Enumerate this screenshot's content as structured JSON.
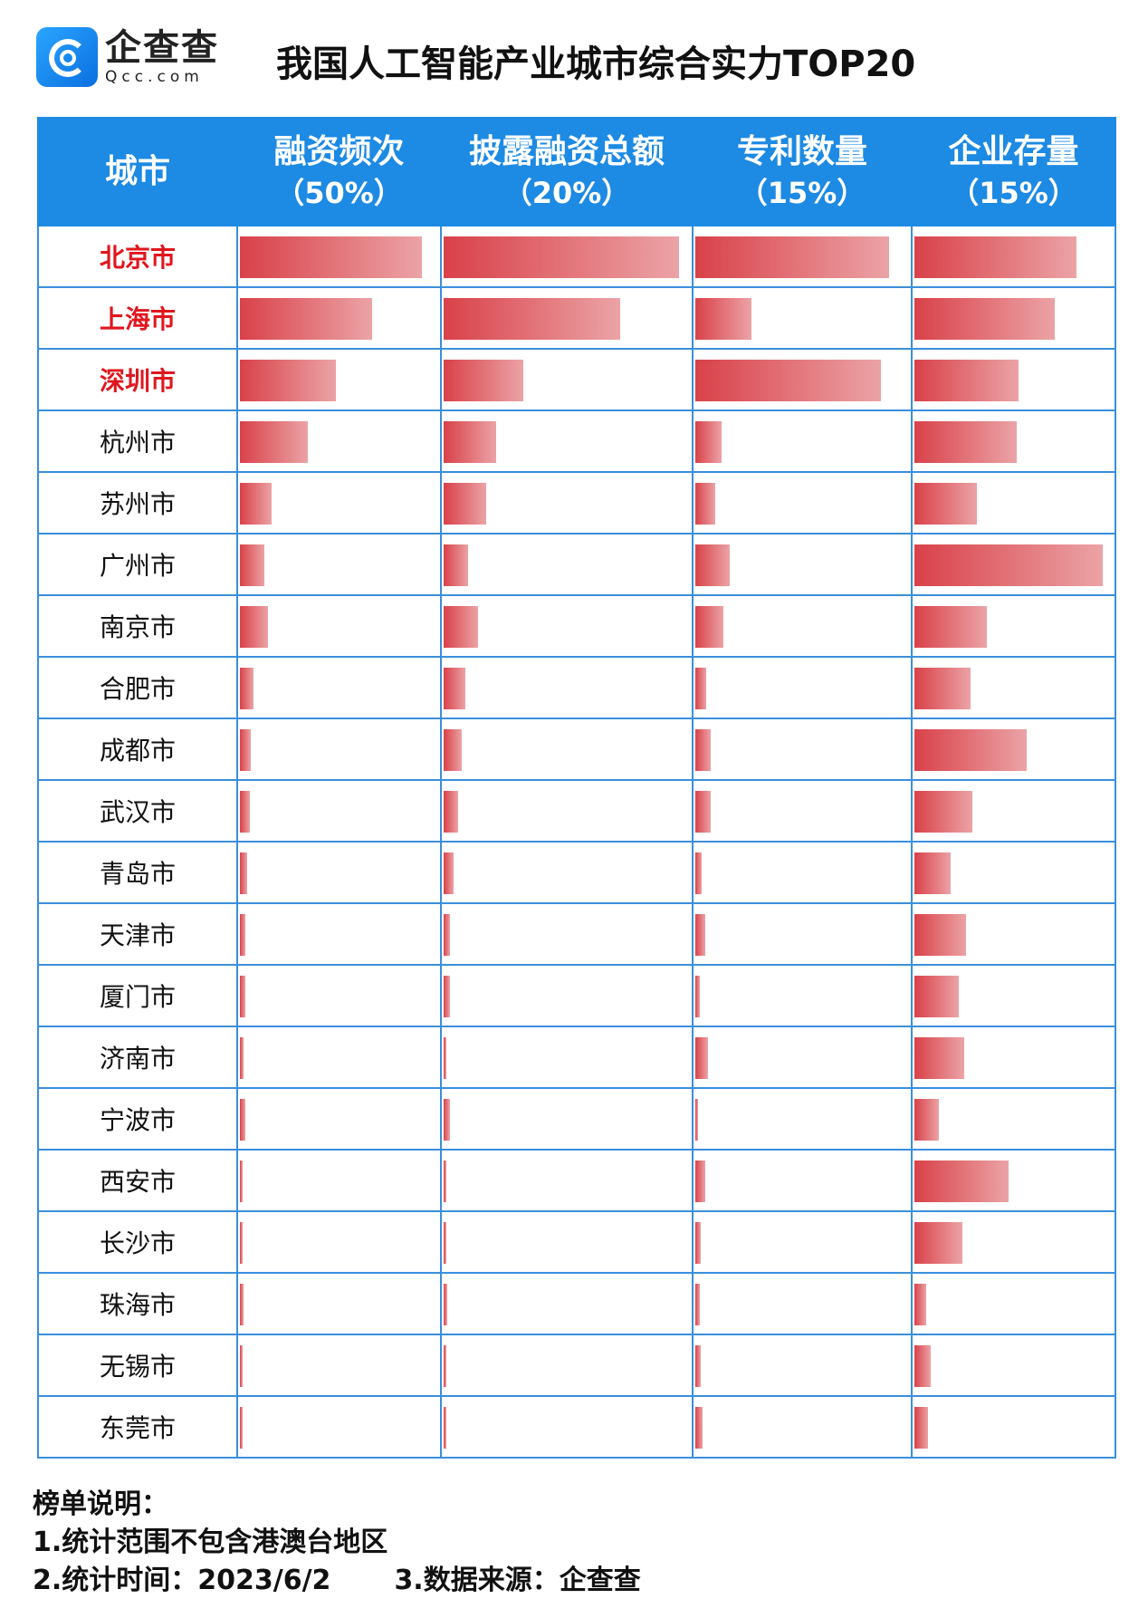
{
  "brand": {
    "name_cn": "企查查",
    "name_en": "Qcc.com",
    "logo_color": "#1d8ae3"
  },
  "title": "我国人工智能产业城市综合实力TOP20",
  "chart_data": {
    "type": "table",
    "title": "我国人工智能产业城市综合实力TOP20",
    "columns": [
      {
        "label": "城市",
        "weight": ""
      },
      {
        "label": "融资频次",
        "weight": "（50%）"
      },
      {
        "label": "披露融资总额",
        "weight": "（20%）"
      },
      {
        "label": "专利数量",
        "weight": "（15%）"
      },
      {
        "label": "企业存量",
        "weight": "（15%）"
      }
    ],
    "bar_color": "#d94149",
    "highlight_color": "#e0161e",
    "rows": [
      {
        "city": "北京市",
        "highlight": true,
        "values": [
          0.91,
          0.95,
          0.9,
          0.81
        ]
      },
      {
        "city": "上海市",
        "highlight": true,
        "values": [
          0.66,
          0.71,
          0.26,
          0.7
        ]
      },
      {
        "city": "深圳市",
        "highlight": true,
        "values": [
          0.48,
          0.32,
          0.86,
          0.52
        ]
      },
      {
        "city": "杭州市",
        "highlight": false,
        "values": [
          0.34,
          0.21,
          0.12,
          0.51
        ]
      },
      {
        "city": "苏州市",
        "highlight": false,
        "values": [
          0.16,
          0.17,
          0.094,
          0.31
        ]
      },
      {
        "city": "广州市",
        "highlight": false,
        "values": [
          0.12,
          0.1,
          0.16,
          0.94
        ]
      },
      {
        "city": "南京市",
        "highlight": false,
        "values": [
          0.14,
          0.14,
          0.13,
          0.36
        ]
      },
      {
        "city": "合肥市",
        "highlight": false,
        "values": [
          0.07,
          0.086,
          0.052,
          0.28
        ]
      },
      {
        "city": "成都市",
        "highlight": false,
        "values": [
          0.055,
          0.074,
          0.07,
          0.56
        ]
      },
      {
        "city": "武汉市",
        "highlight": false,
        "values": [
          0.05,
          0.057,
          0.07,
          0.29
        ]
      },
      {
        "city": "青岛市",
        "highlight": false,
        "values": [
          0.035,
          0.041,
          0.028,
          0.18
        ]
      },
      {
        "city": "天津市",
        "highlight": false,
        "values": [
          0.025,
          0.025,
          0.047,
          0.26
        ]
      },
      {
        "city": "厦门市",
        "highlight": false,
        "values": [
          0.025,
          0.025,
          0.019,
          0.22
        ]
      },
      {
        "city": "济南市",
        "highlight": false,
        "values": [
          0.02,
          0.012,
          0.057,
          0.25
        ]
      },
      {
        "city": "宁波市",
        "highlight": false,
        "values": [
          0.025,
          0.025,
          0.009,
          0.12
        ]
      },
      {
        "city": "西安市",
        "highlight": false,
        "values": [
          0.015,
          0.008,
          0.047,
          0.47
        ]
      },
      {
        "city": "长沙市",
        "highlight": false,
        "values": [
          0.015,
          0.008,
          0.024,
          0.24
        ]
      },
      {
        "city": "珠海市",
        "highlight": false,
        "values": [
          0.02,
          0.016,
          0.019,
          0.06
        ]
      },
      {
        "city": "无锡市",
        "highlight": false,
        "values": [
          0.015,
          0.008,
          0.024,
          0.08
        ]
      },
      {
        "city": "东莞市",
        "highlight": false,
        "values": [
          0.01,
          0.008,
          0.033,
          0.07
        ]
      }
    ]
  },
  "footer": {
    "heading": "榜单说明：",
    "note1": "1.统计范围不包含港澳台地区",
    "note2": "2.统计时间：2023/6/2",
    "note3": "3.数据来源：企查查"
  }
}
